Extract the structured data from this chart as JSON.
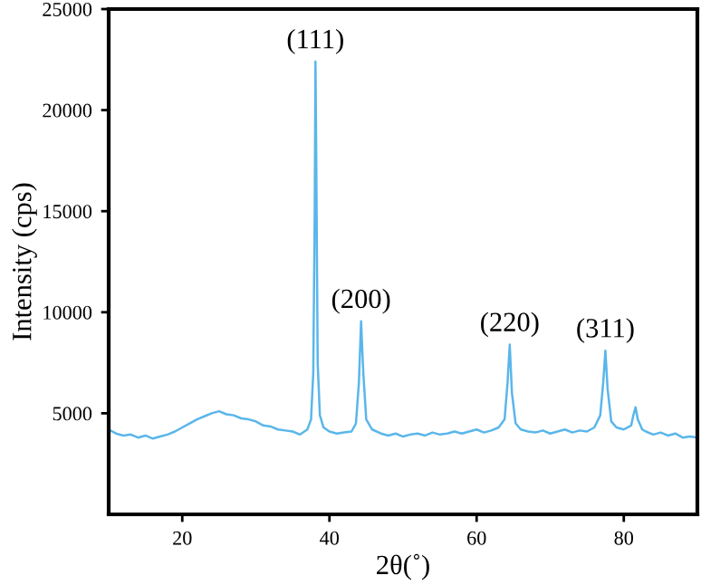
{
  "chart_data": {
    "type": "line",
    "xlabel": "2θ(˚)",
    "ylabel": "Intensity (cps)",
    "xlim": [
      10,
      90
    ],
    "ylim": [
      0,
      25000
    ],
    "xticks": [
      20,
      40,
      60,
      80
    ],
    "yticks": [
      5000,
      10000,
      15000,
      20000,
      25000
    ],
    "grid": false,
    "legend": false,
    "series": [
      {
        "color": "#5ab6ea",
        "x": [
          10,
          11,
          12,
          13,
          14,
          15,
          16,
          17,
          18,
          19,
          20,
          21,
          22,
          23,
          24,
          25,
          26,
          27,
          28,
          29,
          30,
          31,
          32,
          33,
          34,
          35,
          36,
          37,
          37.5,
          37.8,
          38.0,
          38.1,
          38.2,
          38.4,
          38.7,
          39.2,
          40,
          41,
          42,
          43,
          43.6,
          44.0,
          44.3,
          44.6,
          45.0,
          45.8,
          47,
          48,
          49,
          50,
          51,
          52,
          53,
          54,
          55,
          56,
          57,
          58,
          59,
          60,
          61,
          62,
          63,
          63.8,
          64.2,
          64.5,
          64.8,
          65.3,
          66,
          67,
          68,
          69,
          70,
          71,
          72,
          73,
          74,
          75,
          76,
          76.8,
          77.2,
          77.5,
          77.8,
          78.3,
          79,
          80,
          81,
          81.3,
          81.6,
          81.9,
          82.5,
          83,
          84,
          85,
          86,
          87,
          88,
          89,
          90
        ],
        "values": [
          4200,
          4000,
          3900,
          3950,
          3800,
          3900,
          3750,
          3850,
          3950,
          4100,
          4300,
          4500,
          4700,
          4850,
          5000,
          5100,
          4950,
          4900,
          4750,
          4700,
          4600,
          4400,
          4350,
          4200,
          4150,
          4100,
          3950,
          4200,
          4700,
          7000,
          15000,
          22400,
          18000,
          7500,
          4900,
          4300,
          4100,
          4000,
          4050,
          4100,
          4500,
          6500,
          9550,
          7000,
          4700,
          4200,
          4000,
          3900,
          4000,
          3850,
          3950,
          4000,
          3900,
          4050,
          3950,
          4000,
          4100,
          4000,
          4100,
          4200,
          4050,
          4150,
          4300,
          4700,
          6500,
          8400,
          6000,
          4500,
          4200,
          4100,
          4050,
          4150,
          4000,
          4100,
          4200,
          4050,
          4150,
          4100,
          4300,
          4900,
          6500,
          8100,
          6200,
          4600,
          4300,
          4200,
          4400,
          4900,
          5300,
          4700,
          4200,
          4100,
          3950,
          4050,
          3900,
          4000,
          3800,
          3850,
          3800
        ]
      }
    ],
    "annotations": [
      {
        "text": "(111)",
        "x": 38.1,
        "y": 22400
      },
      {
        "text": "(200)",
        "x": 44.3,
        "y": 9550
      },
      {
        "text": "(220)",
        "x": 64.5,
        "y": 8400
      },
      {
        "text": "(311)",
        "x": 77.5,
        "y": 8100
      }
    ]
  }
}
